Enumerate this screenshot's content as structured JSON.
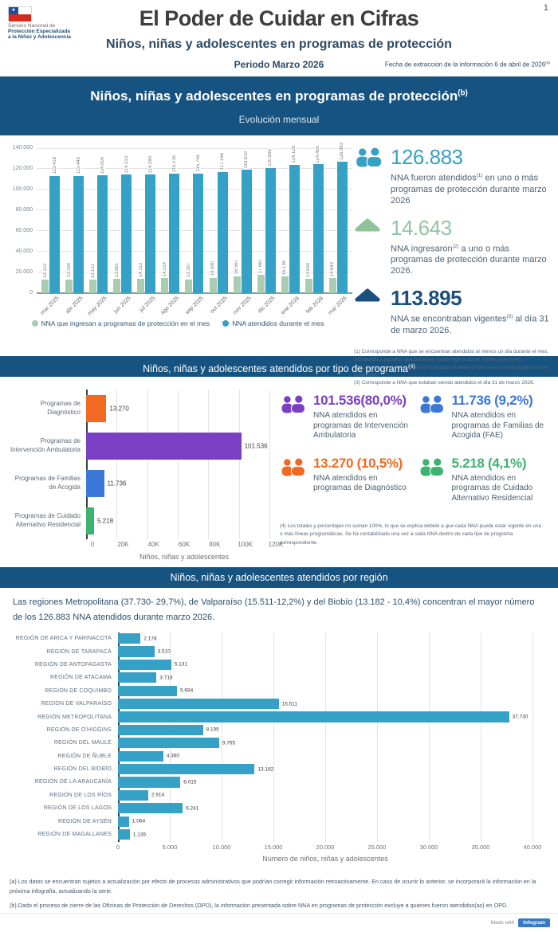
{
  "header": {
    "logo_lines": [
      "Servicio Nacional de",
      "Protección Especializada",
      "a la Niñez y Adolescencia"
    ],
    "title": "El Poder de Cuidar en Cifras",
    "subtitle": "Niños, niñas y adolescentes en programas de protección",
    "period": "Periodo Marzo 2026",
    "extraction_text": "Fecha de extracción de la información 6 de abril de 2026",
    "extraction_sup": "(a)",
    "page_number": "1"
  },
  "section_monthly": {
    "banner_title": "Niños, niñas y adolescentes en programas de protección",
    "banner_sup": "(b)",
    "banner_subtitle": "Evolución mensual",
    "stats": [
      {
        "value": "126.883",
        "color": "#35a1c6",
        "desc_pre": "NNA fueron atendidos",
        "desc_sup": "(1)",
        "desc_post": " en uno o más programas de protección durante marzo 2026"
      },
      {
        "value": "14.643",
        "color": "#8fc39a",
        "desc_pre": "NNA ingresaron",
        "desc_sup": "(2)",
        "desc_post": " a uno o más programas de protección durante marzo 2026."
      },
      {
        "value": "113.895",
        "color": "#1b4f7e",
        "desc_pre": "NNA se encontraban vigentes",
        "desc_sup": "(3)",
        "desc_post": " al día 31 de marzo 2026."
      }
    ],
    "footnotes": [
      "(1) Corresponde a NNA que se encuentran atendidos al menos un día durante el mes, incluyendo a aquellos que pudiesen haber ingresado en meses anteriores.",
      "(2) Corresponde a NNA que han ingresado durante el mes a uno o más programas de protección.",
      "(3) Corresponde a NNA que estaban siendo atendidos el día 31 de marzo 2026."
    ],
    "legend": [
      {
        "label": "NNA que ingresan a programas de protección en el mes",
        "color": "#a9cdb0"
      },
      {
        "label": "NNA atendidos durante el mes",
        "color": "#35a1c6"
      }
    ]
  },
  "section_programs": {
    "banner_title": "Niños, niñas y adolescentes atendidos por tipo de programa",
    "banner_sup": "(4)",
    "stats": [
      {
        "value": "101.536(80,0%)",
        "color": "#7b3fc4",
        "desc": "NNA atendidos en programas de Intervención Ambulatoria"
      },
      {
        "value": "11.736 (9,2%)",
        "color": "#3c78d8",
        "desc": "NNA atendidos en programas de Familias de Acogida (FAE)"
      },
      {
        "value": "13.270 (10,5%)",
        "color": "#f26a21",
        "desc": "NNA atendidos en programas de Diagnóstico"
      },
      {
        "value": "5.218 (4,1%)",
        "color": "#3cb371",
        "desc": "NNA atendidos en programas de Cuidado Alternativo Residencial"
      }
    ],
    "footnote": "(4) Los totales y porcentajes no suman 100%, lo que se explica debido a que cada NNA puede estar vigente en una o más líneas programáticas. Se ha contabilizado una vez a cada NNA dentro de cada tipo de programa correspondiente."
  },
  "section_regions": {
    "banner_title": "Niños, niñas y adolescentes atendidos por región",
    "intro": "Las regiones Metropolitana (37.730- 29,7%), de Valparaíso (15.511-12,2%) y del Biobío (13.182 - 10,4%) concentran el mayor número de los 126.883 NNA atendidos durante marzo 2026."
  },
  "notes": [
    "(a) Los datos se encuentran sujetos a actualización por efecto de procesos administrativos que podrían corregir información retroactivamente. En caso de ocurrir lo anterior, se incorporará la información en la próxima infografía, actualizando la serie.",
    "(b) Dado el proceso de cierre de las Oficinas de Protección de Derechos (OPD), la información presentada sobre NNA en programas de protección excluye a quienes fueron atendidos(as) en OPD."
  ],
  "footer": {
    "made_with": "Made with",
    "brand": "Infogram"
  },
  "chart_data": [
    {
      "id": "monthly-evolution",
      "type": "bar",
      "title": "Evolución mensual",
      "categories": [
        "mar 2025",
        "abr 2025",
        "may 2025",
        "jun 2025",
        "jul 2025",
        "ago 2025",
        "sep 2025",
        "oct 2025",
        "nov 2025",
        "dic 2025",
        "ene 2026",
        "feb 2026",
        "mar 2026"
      ],
      "series": [
        {
          "name": "NNA que ingresan a programas de protección en el mes",
          "color": "#a9cdb0",
          "values": [
            13110,
            13334,
            13151,
            13881,
            14113,
            14514,
            13397,
            14980,
            16567,
            17667,
            16134,
            13839,
            14643
          ],
          "labels": [
            "13.110",
            "13.334",
            "13.151",
            "13.881",
            "14.113",
            "14.514",
            "13.397",
            "14.980",
            "16.567",
            "17.667",
            "16.134",
            "13.839",
            "14.643"
          ]
        },
        {
          "name": "NNA atendidos durante el mes",
          "color": "#35a1c6",
          "values": [
            113418,
            113445,
            114000,
            114313,
            114390,
            115216,
            115755,
            117166,
            118919,
            120695,
            124128,
            124455,
            126883
          ],
          "labels": [
            "113.418",
            "113.445",
            "114.000",
            "114.313",
            "114.390",
            "115.216",
            "115.755",
            "117.166",
            "118.919",
            "120.695",
            "124.128",
            "124.455",
            "126.883"
          ]
        }
      ],
      "ylim": [
        0,
        140000
      ],
      "yticks": [
        "0",
        "20.000",
        "40.000",
        "60.000",
        "80.000",
        "100.000",
        "120.000",
        "140.000"
      ],
      "grid": true,
      "legend_position": "bottom"
    },
    {
      "id": "by-program-type",
      "type": "bar",
      "orientation": "horizontal",
      "categories": [
        "Programas de Diagnóstico",
        "Programas de Intervención Ambulatoria",
        "Programas de Familias de Acogida",
        "Programas de Cuidado Alternativo Residencial"
      ],
      "values": [
        13270,
        101536,
        11736,
        5218
      ],
      "labels": [
        "13.270",
        "101.536",
        "11.736",
        "5.218"
      ],
      "colors": [
        "#f26a21",
        "#7b3fc4",
        "#3c78d8",
        "#3cb371"
      ],
      "xlim": [
        0,
        120000
      ],
      "xticks": [
        "0",
        "20K",
        "40K",
        "60K",
        "80K",
        "100K",
        "120K"
      ],
      "xlabel": "Niños, niñas y adolescentes",
      "grid": true
    },
    {
      "id": "by-region",
      "type": "bar",
      "orientation": "horizontal",
      "color": "#35a1c6",
      "categories": [
        "REGIÓN DE ARICA Y PARINACOTA",
        "REGIÓN DE TARAPACÁ",
        "REGIÓN DE ANTOFAGASTA",
        "REGIÓN DE ATACAMA",
        "REGIÓN DE COQUIMBO",
        "REGIÓN DE VALPARAÍSO",
        "REGIÓN METROPOLITANA",
        "REGIÓN DE O'HIGGINS",
        "REGIÓN DEL MAULE",
        "REGIÓN DE ÑUBLE",
        "REGIÓN DEL BIOBÍO",
        "REGIÓN DE LA ARAUCANÍA",
        "REGIÓN DE LOS RÍOS",
        "REGIÓN DE LOS LAGOS",
        "REGIÓN DE AYSÉN",
        "REGIÓN DE MAGALLANES"
      ],
      "values": [
        2178,
        3510,
        5131,
        3716,
        5694,
        15511,
        37730,
        8195,
        9765,
        4360,
        13182,
        6015,
        2914,
        6241,
        1064,
        1135
      ],
      "labels": [
        "2.178",
        "3.510",
        "5.131",
        "3.716",
        "5.694",
        "15.511",
        "37.730",
        "8.195",
        "9.765",
        "4.360",
        "13.182",
        "6.015",
        "2.914",
        "6.241",
        "1.064",
        "1.135"
      ],
      "xlim": [
        0,
        40000
      ],
      "xticks": [
        "0",
        "5.000",
        "10.000",
        "15.000",
        "20.000",
        "25.000",
        "30.000",
        "35.000",
        "40.000"
      ],
      "xlabel": "Número de niños, niñas y adolescentes",
      "grid": true
    }
  ]
}
